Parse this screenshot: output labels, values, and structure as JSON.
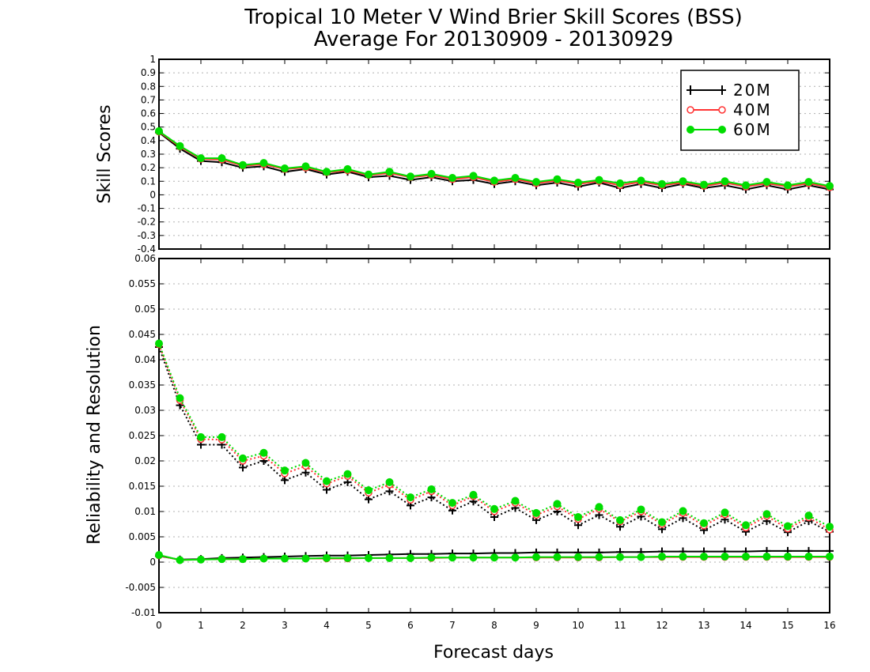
{
  "chart_data": {
    "type": "line",
    "title": "Tropical 10 Meter V Wind Brier Skill Scores (BSS)",
    "subtitle": "Average For 20130909 - 20130929",
    "xlabel": "Forecast days",
    "x": [
      0,
      0.5,
      1,
      1.5,
      2,
      2.5,
      3,
      3.5,
      4,
      4.5,
      5,
      5.5,
      6,
      6.5,
      7,
      7.5,
      8,
      8.5,
      9,
      9.5,
      10,
      10.5,
      11,
      11.5,
      12,
      12.5,
      13,
      13.5,
      14,
      14.5,
      15,
      15.5,
      16
    ],
    "xlim": [
      0,
      16
    ],
    "xticks": [
      "0",
      "1",
      "2",
      "3",
      "4",
      "5",
      "6",
      "7",
      "8",
      "9",
      "10",
      "11",
      "12",
      "13",
      "14",
      "15",
      "16"
    ],
    "legend": {
      "position": "top-right",
      "entries": [
        "20M",
        "40M",
        "60M"
      ]
    },
    "colors": {
      "20M": "#000000",
      "40M": "#ff3333",
      "60M": "#00dd00"
    },
    "panels": [
      {
        "ylabel": "Skill Scores",
        "ylim": [
          -0.4,
          1
        ],
        "yticks": [
          "-0.4",
          "-0.3",
          "-0.2",
          "-0.1",
          "0",
          "0.1",
          "0.2",
          "0.3",
          "0.4",
          "0.5",
          "0.6",
          "0.7",
          "0.8",
          "0.9",
          "1"
        ],
        "grid": true,
        "series": [
          {
            "name": "20M",
            "values": [
              0.46,
              0.34,
              0.25,
              0.24,
              0.2,
              0.21,
              0.17,
              0.19,
              0.15,
              0.17,
              0.13,
              0.14,
              0.11,
              0.13,
              0.1,
              0.11,
              0.08,
              0.1,
              0.07,
              0.09,
              0.06,
              0.09,
              0.05,
              0.08,
              0.05,
              0.08,
              0.05,
              0.07,
              0.04,
              0.07,
              0.04,
              0.07,
              0.04
            ]
          },
          {
            "name": "40M",
            "values": [
              0.465,
              0.355,
              0.265,
              0.26,
              0.215,
              0.225,
              0.19,
              0.2,
              0.165,
              0.18,
              0.145,
              0.16,
              0.13,
              0.145,
              0.115,
              0.13,
              0.095,
              0.115,
              0.085,
              0.105,
              0.08,
              0.1,
              0.07,
              0.095,
              0.07,
              0.09,
              0.065,
              0.09,
              0.06,
              0.085,
              0.06,
              0.085,
              0.055
            ]
          },
          {
            "name": "60M",
            "values": [
              0.47,
              0.36,
              0.27,
              0.27,
              0.22,
              0.235,
              0.195,
              0.21,
              0.17,
              0.19,
              0.15,
              0.17,
              0.135,
              0.155,
              0.125,
              0.14,
              0.105,
              0.125,
              0.095,
              0.115,
              0.09,
              0.11,
              0.085,
              0.105,
              0.08,
              0.1,
              0.075,
              0.1,
              0.07,
              0.095,
              0.07,
              0.095,
              0.065
            ]
          }
        ]
      },
      {
        "ylabel": "Reliability and Resolution",
        "ylim": [
          -0.01,
          0.06
        ],
        "yticks": [
          "-0.01",
          "-0.005",
          "0",
          "0.005",
          "0.01",
          "0.015",
          "0.02",
          "0.025",
          "0.03",
          "0.035",
          "0.04",
          "0.045",
          "0.05",
          "0.055",
          "0.06"
        ],
        "grid": true,
        "series": [
          {
            "name": "20M",
            "metric": "resolution",
            "style": "dotted",
            "values": [
              0.0425,
              0.031,
              0.0232,
              0.0232,
              0.0187,
              0.02,
              0.0162,
              0.0177,
              0.0143,
              0.0158,
              0.0124,
              0.014,
              0.0112,
              0.0128,
              0.0102,
              0.012,
              0.0089,
              0.0107,
              0.0083,
              0.01,
              0.0073,
              0.0093,
              0.007,
              0.009,
              0.0065,
              0.0087,
              0.0063,
              0.0084,
              0.006,
              0.0081,
              0.0059,
              0.0081,
              0.006
            ]
          },
          {
            "name": "40M",
            "metric": "resolution",
            "style": "dotted",
            "values": [
              0.043,
              0.032,
              0.0243,
              0.0242,
              0.02,
              0.021,
              0.0175,
              0.019,
              0.0155,
              0.017,
              0.0137,
              0.0153,
              0.0123,
              0.014,
              0.0112,
              0.013,
              0.01,
              0.0117,
              0.0093,
              0.011,
              0.0085,
              0.0105,
              0.008,
              0.01,
              0.0075,
              0.0097,
              0.0072,
              0.0094,
              0.0068,
              0.0091,
              0.0066,
              0.0088,
              0.0064
            ]
          },
          {
            "name": "60M",
            "metric": "resolution",
            "style": "dotted",
            "values": [
              0.0432,
              0.0324,
              0.0247,
              0.0247,
              0.0205,
              0.0216,
              0.0181,
              0.0196,
              0.016,
              0.0174,
              0.0142,
              0.0158,
              0.0128,
              0.0144,
              0.0117,
              0.0133,
              0.0105,
              0.0121,
              0.0097,
              0.0115,
              0.0089,
              0.0109,
              0.0083,
              0.0104,
              0.0079,
              0.0101,
              0.0077,
              0.0098,
              0.0073,
              0.0095,
              0.0071,
              0.0092,
              0.007
            ]
          },
          {
            "name": "20M",
            "metric": "reliability",
            "style": "solid",
            "values": [
              0.0012,
              0.0005,
              0.0006,
              0.0008,
              0.0009,
              0.001,
              0.0011,
              0.0012,
              0.0013,
              0.0013,
              0.0014,
              0.0015,
              0.0016,
              0.0016,
              0.0017,
              0.0017,
              0.0018,
              0.0018,
              0.0019,
              0.0019,
              0.0019,
              0.0019,
              0.002,
              0.002,
              0.0021,
              0.0021,
              0.0021,
              0.0021,
              0.0021,
              0.0022,
              0.0022,
              0.0022,
              0.0022
            ]
          },
          {
            "name": "40M",
            "metric": "reliability",
            "style": "solid",
            "values": [
              0.0013,
              0.0004,
              0.0005,
              0.0006,
              0.0006,
              0.0007,
              0.0007,
              0.0007,
              0.0007,
              0.0007,
              0.0008,
              0.0008,
              0.0008,
              0.0008,
              0.0009,
              0.0009,
              0.0009,
              0.0009,
              0.0009,
              0.0009,
              0.0009,
              0.0009,
              0.001,
              0.001,
              0.001,
              0.001,
              0.001,
              0.001,
              0.001,
              0.001,
              0.001,
              0.001,
              0.001
            ]
          },
          {
            "name": "60M",
            "metric": "reliability",
            "style": "solid",
            "values": [
              0.0014,
              0.0004,
              0.0005,
              0.0006,
              0.0006,
              0.0007,
              0.0007,
              0.0007,
              0.0008,
              0.0008,
              0.0008,
              0.0008,
              0.0008,
              0.0009,
              0.0009,
              0.0009,
              0.0009,
              0.0009,
              0.001,
              0.001,
              0.001,
              0.001,
              0.001,
              0.001,
              0.0011,
              0.0011,
              0.0011,
              0.0011,
              0.0011,
              0.0011,
              0.0011,
              0.0011,
              0.0011
            ]
          }
        ]
      }
    ]
  }
}
